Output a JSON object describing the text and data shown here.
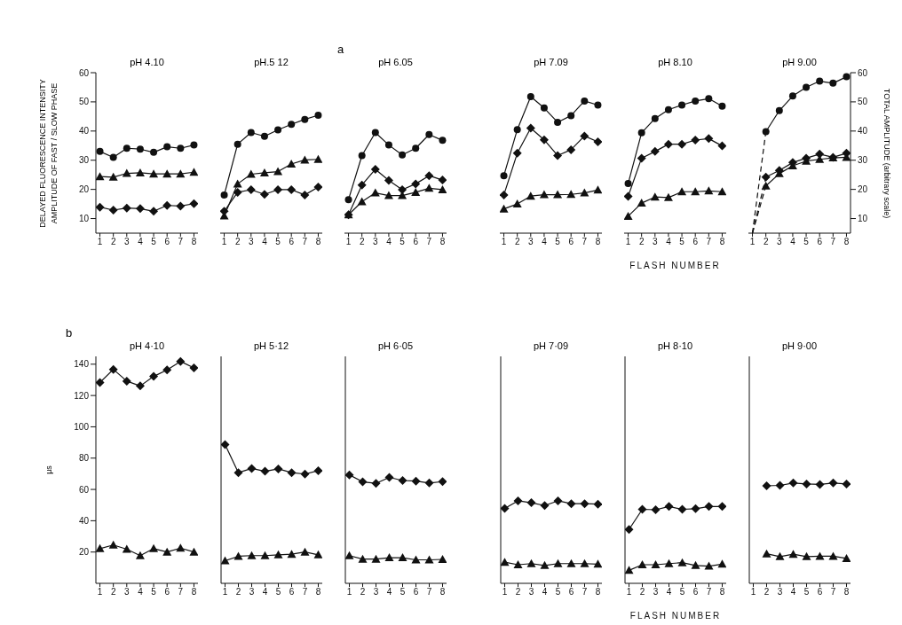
{
  "chart_data": [
    {
      "type": "line",
      "title": "pH 4.10",
      "annotations": [
        "a"
      ],
      "ylabel": "DELAYED FLUORESCENCE INTENSITY\nAMPLITUDE OF FAST / SLOW PHASE",
      "categories": [
        "1",
        "2",
        "3",
        "4",
        "5",
        "6",
        "7",
        "8"
      ],
      "ylim": [
        5,
        60
      ],
      "yticks": [
        10,
        20,
        30,
        40,
        50,
        60
      ],
      "series": [
        {
          "color": "#111111",
          "marker": "circle",
          "values": [
            33.0,
            31.0,
            34.1,
            33.8,
            32.7,
            34.6,
            34.1,
            35.2
          ]
        },
        {
          "color": "#111111",
          "marker": "triangle",
          "values": [
            24.4,
            24.2,
            25.5,
            25.7,
            25.3,
            25.3,
            25.3,
            25.9
          ]
        },
        {
          "color": "#111111",
          "marker": "diamond",
          "values": [
            13.9,
            12.9,
            13.6,
            13.4,
            12.5,
            14.5,
            14.3,
            15.1
          ]
        }
      ]
    },
    {
      "type": "line",
      "title": "pH.5 12",
      "categories": [
        "1",
        "2",
        "3",
        "4",
        "5",
        "6",
        "7",
        "8"
      ],
      "ylim": [
        5,
        60
      ],
      "tick_labels": "x",
      "series": [
        {
          "color": "#111111",
          "marker": "circle",
          "values": [
            18.1,
            35.5,
            39.5,
            38.2,
            40.4,
            42.3,
            44.0,
            45.4
          ]
        },
        {
          "color": "#111111",
          "marker": "triangle",
          "values": [
            10.9,
            21.9,
            25.2,
            25.7,
            26.1,
            28.7,
            30.1,
            30.3
          ]
        },
        {
          "color": "#111111",
          "marker": "diamond",
          "values": [
            12.5,
            19.0,
            19.9,
            18.3,
            19.9,
            19.9,
            18.1,
            20.8
          ]
        }
      ]
    },
    {
      "type": "line",
      "title": "pH 6.05",
      "categories": [
        "1",
        "2",
        "3",
        "4",
        "5",
        "6",
        "7",
        "8"
      ],
      "ylim": [
        5,
        60
      ],
      "tick_labels": "x",
      "series": [
        {
          "color": "#111111",
          "marker": "circle",
          "values": [
            16.5,
            31.6,
            39.5,
            35.2,
            31.8,
            34.1,
            38.8,
            36.8
          ]
        },
        {
          "color": "#111111",
          "marker": "diamond",
          "values": [
            11.3,
            21.5,
            26.9,
            23.1,
            19.9,
            21.9,
            24.7,
            23.2
          ]
        },
        {
          "color": "#111111",
          "marker": "triangle",
          "values": [
            11.3,
            15.8,
            18.8,
            17.9,
            17.9,
            19.0,
            20.4,
            19.9
          ]
        }
      ]
    },
    {
      "type": "line",
      "title": "pH 7.09",
      "categories": [
        "1",
        "2",
        "3",
        "4",
        "5",
        "6",
        "7",
        "8"
      ],
      "ylim": [
        5,
        60
      ],
      "tick_labels": "x",
      "series": [
        {
          "color": "#111111",
          "marker": "circle",
          "values": [
            24.7,
            40.5,
            51.8,
            47.9,
            43.0,
            45.3,
            50.3,
            48.9
          ]
        },
        {
          "color": "#111111",
          "marker": "diamond",
          "values": [
            18.1,
            32.4,
            41.0,
            37.0,
            31.6,
            33.6,
            38.3,
            36.3
          ]
        },
        {
          "color": "#111111",
          "marker": "triangle",
          "values": [
            13.3,
            15.0,
            17.7,
            18.2,
            18.2,
            18.3,
            18.8,
            19.8
          ]
        }
      ]
    },
    {
      "type": "line",
      "title": "pH 8.10",
      "xlabel": "FLASH NUMBER",
      "categories": [
        "1",
        "2",
        "3",
        "4",
        "5",
        "6",
        "7",
        "8"
      ],
      "ylim": [
        5,
        60
      ],
      "tick_labels": "x",
      "series": [
        {
          "color": "#111111",
          "marker": "circle",
          "values": [
            22.0,
            39.4,
            44.3,
            47.3,
            48.9,
            50.3,
            51.1,
            48.5
          ]
        },
        {
          "color": "#111111",
          "marker": "diamond",
          "values": [
            17.6,
            30.7,
            33.0,
            35.5,
            35.5,
            36.9,
            37.4,
            34.9
          ]
        },
        {
          "color": "#111111",
          "marker": "triangle",
          "values": [
            10.8,
            15.3,
            17.4,
            17.2,
            19.2,
            19.2,
            19.5,
            19.2
          ]
        }
      ]
    },
    {
      "type": "line",
      "title": "pH 9.00",
      "y2label": "TOTAL AMPLITUDE (arbitrary scale)",
      "categories": [
        "1",
        "2",
        "3",
        "4",
        "5",
        "6",
        "7",
        "8"
      ],
      "y2lim": [
        5,
        60
      ],
      "y2ticks": [
        10,
        20,
        30,
        40,
        50,
        60
      ],
      "series": [
        {
          "color": "#111111",
          "marker": "circle",
          "axis": "y2",
          "values": [
            null,
            39.8,
            47.0,
            52.0,
            55.0,
            57.1,
            56.4,
            58.6
          ]
        },
        {
          "color": "#111111",
          "marker": "diamond",
          "axis": "y2",
          "values": [
            null,
            24.2,
            26.5,
            29.2,
            30.7,
            32.1,
            31.0,
            32.4
          ]
        },
        {
          "color": "#111111",
          "marker": "triangle",
          "axis": "y2",
          "values": [
            null,
            21.2,
            25.4,
            28.1,
            29.7,
            30.3,
            30.8,
            31.0
          ]
        },
        {
          "color": "#111111",
          "marker": "none",
          "line_style": "dashed",
          "axis": "y2",
          "values": [
            5,
            39.8,
            null,
            null,
            null,
            null,
            null,
            null
          ]
        },
        {
          "color": "#111111",
          "marker": "none",
          "line_style": "dashed",
          "axis": "y2",
          "values": [
            5,
            24.2,
            null,
            null,
            null,
            null,
            null,
            null
          ]
        },
        {
          "color": "#111111",
          "marker": "none",
          "line_style": "dashed",
          "axis": "y2",
          "values": [
            5,
            21.2,
            null,
            null,
            null,
            null,
            null,
            null
          ]
        }
      ]
    },
    {
      "type": "line",
      "title": "pH 4·10",
      "annotations": [
        "b"
      ],
      "ylabel": "μs",
      "categories": [
        "1",
        "2",
        "3",
        "4",
        "5",
        "6",
        "7",
        "8"
      ],
      "ylim": [
        0,
        145
      ],
      "yticks": [
        20,
        40,
        60,
        80,
        100,
        120,
        140
      ],
      "series": [
        {
          "color": "#111111",
          "marker": "diamond",
          "values": [
            128.3,
            136.7,
            129.2,
            126.1,
            132.2,
            136.4,
            141.8,
            137.6
          ]
        },
        {
          "color": "#111111",
          "marker": "triangle",
          "values": [
            22.2,
            24.5,
            21.8,
            17.7,
            22.2,
            20.0,
            22.5,
            20.0
          ]
        }
      ]
    },
    {
      "type": "line",
      "title": "pH 5·12",
      "categories": [
        "1",
        "2",
        "3",
        "4",
        "5",
        "6",
        "7",
        "8"
      ],
      "ylim": [
        0,
        145
      ],
      "tick_labels": "x",
      "series": [
        {
          "color": "#111111",
          "marker": "diamond",
          "values": [
            88.7,
            70.7,
            73.4,
            71.6,
            73.1,
            70.7,
            69.8,
            72.0
          ]
        },
        {
          "color": "#111111",
          "marker": "triangle",
          "values": [
            14.4,
            17.3,
            17.7,
            17.7,
            18.2,
            18.6,
            20.0,
            18.2
          ]
        }
      ]
    },
    {
      "type": "line",
      "title": "pH 6·05",
      "categories": [
        "1",
        "2",
        "3",
        "4",
        "5",
        "6",
        "7",
        "8"
      ],
      "ylim": [
        0,
        145
      ],
      "tick_labels": "x",
      "series": [
        {
          "color": "#111111",
          "marker": "diamond",
          "values": [
            69.3,
            64.8,
            63.9,
            67.7,
            65.7,
            65.3,
            64.1,
            65.0
          ]
        },
        {
          "color": "#111111",
          "marker": "triangle",
          "values": [
            17.7,
            15.5,
            15.5,
            16.4,
            16.4,
            15.0,
            15.0,
            15.3
          ]
        }
      ]
    },
    {
      "type": "line",
      "title": "pH 7·09",
      "categories": [
        "1",
        "2",
        "3",
        "4",
        "5",
        "6",
        "7",
        "8"
      ],
      "ylim": [
        0,
        145
      ],
      "tick_labels": "x",
      "series": [
        {
          "color": "#111111",
          "marker": "diamond",
          "values": [
            47.9,
            52.7,
            51.5,
            49.7,
            52.7,
            50.9,
            50.9,
            50.6
          ]
        },
        {
          "color": "#111111",
          "marker": "triangle",
          "values": [
            13.5,
            11.9,
            12.6,
            11.4,
            12.6,
            12.6,
            12.6,
            12.3
          ]
        }
      ]
    },
    {
      "type": "line",
      "title": "pH 8·10",
      "xlabel": "FLASH NUMBER",
      "categories": [
        "1",
        "2",
        "3",
        "4",
        "5",
        "6",
        "7",
        "8"
      ],
      "ylim": [
        0,
        145
      ],
      "tick_labels": "x",
      "series": [
        {
          "color": "#111111",
          "marker": "diamond",
          "values": [
            34.4,
            47.3,
            47.0,
            49.1,
            47.3,
            47.7,
            49.1,
            49.1
          ]
        },
        {
          "color": "#111111",
          "marker": "triangle",
          "values": [
            8.3,
            11.9,
            11.9,
            12.6,
            13.2,
            11.4,
            11.0,
            12.3
          ]
        }
      ]
    },
    {
      "type": "line",
      "title": "pH 9·00",
      "categories": [
        "1",
        "2",
        "3",
        "4",
        "5",
        "6",
        "7",
        "8"
      ],
      "ylim": [
        0,
        145
      ],
      "tick_labels": "x",
      "series": [
        {
          "color": "#111111",
          "marker": "diamond",
          "values": [
            null,
            62.3,
            62.6,
            64.1,
            63.5,
            63.2,
            64.1,
            63.5
          ]
        },
        {
          "color": "#111111",
          "marker": "triangle",
          "values": [
            null,
            18.9,
            17.1,
            18.6,
            17.1,
            17.3,
            17.3,
            15.9
          ]
        }
      ]
    }
  ]
}
